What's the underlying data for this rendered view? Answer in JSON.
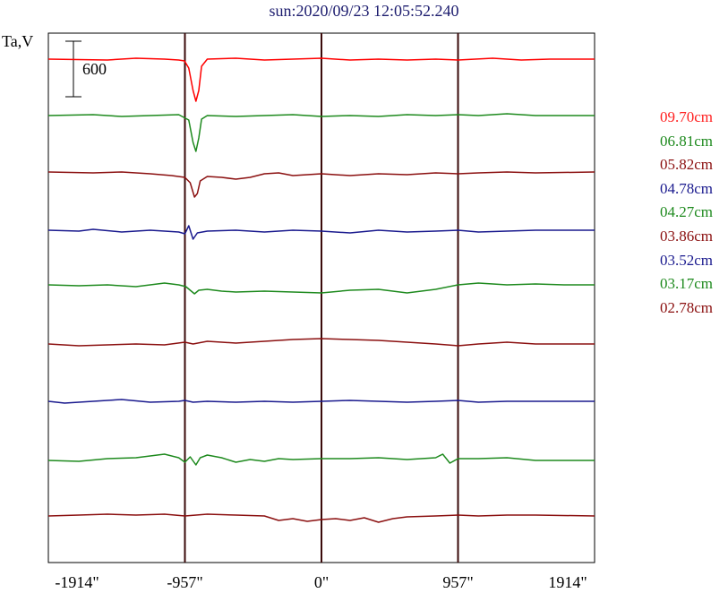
{
  "chart_data": {
    "type": "line",
    "title": "sun:2020/09/23 12:05:52.240",
    "ylabel": "Ta,V",
    "scale_bar_label": "600",
    "x_ticks": [
      "-1914\"",
      "-957\"",
      "0\"",
      "957\"",
      "1914\""
    ],
    "x_tick_values": [
      -1914,
      -957,
      0,
      957,
      1914
    ],
    "xlim": [
      -1914,
      1914
    ],
    "vertical_lines_at": [
      -957,
      0,
      957
    ],
    "series": [
      {
        "name": "09.70cm",
        "color": "#ff0000",
        "offset": 66,
        "points": [
          [
            -1914,
            0
          ],
          [
            -1500,
            1
          ],
          [
            -1300,
            -1
          ],
          [
            -1100,
            0
          ],
          [
            -1000,
            1
          ],
          [
            -960,
            2
          ],
          [
            -930,
            10
          ],
          [
            -900,
            35
          ],
          [
            -880,
            47
          ],
          [
            -860,
            35
          ],
          [
            -840,
            8
          ],
          [
            -800,
            0
          ],
          [
            -600,
            -1
          ],
          [
            -400,
            1
          ],
          [
            -200,
            0
          ],
          [
            0,
            -1
          ],
          [
            200,
            1
          ],
          [
            400,
            0
          ],
          [
            600,
            1
          ],
          [
            800,
            0
          ],
          [
            957,
            1
          ],
          [
            1200,
            -1
          ],
          [
            1400,
            1
          ],
          [
            1600,
            0
          ],
          [
            1914,
            0
          ]
        ]
      },
      {
        "name": "06.81cm",
        "color": "#1e8a1e",
        "offset": 129,
        "points": [
          [
            -1914,
            0
          ],
          [
            -1600,
            -1
          ],
          [
            -1400,
            1
          ],
          [
            -1200,
            0
          ],
          [
            -1000,
            -1
          ],
          [
            -930,
            5
          ],
          [
            -900,
            30
          ],
          [
            -880,
            40
          ],
          [
            -860,
            25
          ],
          [
            -840,
            4
          ],
          [
            -800,
            0
          ],
          [
            -600,
            1
          ],
          [
            -400,
            0
          ],
          [
            -200,
            -1
          ],
          [
            0,
            1
          ],
          [
            200,
            0
          ],
          [
            400,
            1
          ],
          [
            600,
            -1
          ],
          [
            800,
            0
          ],
          [
            957,
            -1
          ],
          [
            1100,
            0
          ],
          [
            1300,
            -2
          ],
          [
            1500,
            0
          ],
          [
            1914,
            0
          ]
        ]
      },
      {
        "name": "05.82cm",
        "color": "#8b1010",
        "offset": 192,
        "points": [
          [
            -1914,
            0
          ],
          [
            -1600,
            1
          ],
          [
            -1400,
            0
          ],
          [
            -1200,
            2
          ],
          [
            -1050,
            4
          ],
          [
            -957,
            6
          ],
          [
            -920,
            12
          ],
          [
            -890,
            28
          ],
          [
            -870,
            24
          ],
          [
            -850,
            10
          ],
          [
            -800,
            5
          ],
          [
            -700,
            6
          ],
          [
            -600,
            8
          ],
          [
            -500,
            6
          ],
          [
            -400,
            2
          ],
          [
            -300,
            1
          ],
          [
            -200,
            4
          ],
          [
            -100,
            3
          ],
          [
            0,
            2
          ],
          [
            200,
            4
          ],
          [
            400,
            2
          ],
          [
            600,
            3
          ],
          [
            800,
            1
          ],
          [
            957,
            2
          ],
          [
            1100,
            1
          ],
          [
            1300,
            0
          ],
          [
            1500,
            1
          ],
          [
            1914,
            0
          ]
        ]
      },
      {
        "name": "04.78cm",
        "color": "#1a1a8e",
        "offset": 257,
        "points": [
          [
            -1914,
            0
          ],
          [
            -1700,
            1
          ],
          [
            -1600,
            -1
          ],
          [
            -1400,
            2
          ],
          [
            -1200,
            0
          ],
          [
            -1000,
            2
          ],
          [
            -957,
            4
          ],
          [
            -930,
            -5
          ],
          [
            -900,
            10
          ],
          [
            -870,
            3
          ],
          [
            -800,
            1
          ],
          [
            -600,
            0
          ],
          [
            -400,
            2
          ],
          [
            -200,
            0
          ],
          [
            0,
            1
          ],
          [
            200,
            3
          ],
          [
            400,
            0
          ],
          [
            600,
            2
          ],
          [
            800,
            1
          ],
          [
            957,
            0
          ],
          [
            1100,
            2
          ],
          [
            1300,
            1
          ],
          [
            1500,
            0
          ],
          [
            1914,
            0
          ]
        ]
      },
      {
        "name": "04.27cm",
        "color": "#1e8a1e",
        "offset": 318,
        "points": [
          [
            -1914,
            0
          ],
          [
            -1700,
            1
          ],
          [
            -1500,
            0
          ],
          [
            -1300,
            2
          ],
          [
            -1100,
            -2
          ],
          [
            -1000,
            0
          ],
          [
            -950,
            2
          ],
          [
            -920,
            6
          ],
          [
            -890,
            10
          ],
          [
            -860,
            6
          ],
          [
            -800,
            5
          ],
          [
            -700,
            7
          ],
          [
            -600,
            8
          ],
          [
            -400,
            7
          ],
          [
            -200,
            8
          ],
          [
            0,
            9
          ],
          [
            200,
            6
          ],
          [
            400,
            5
          ],
          [
            600,
            9
          ],
          [
            800,
            5
          ],
          [
            957,
            0
          ],
          [
            1100,
            -2
          ],
          [
            1300,
            0
          ],
          [
            1500,
            -1
          ],
          [
            1700,
            0
          ],
          [
            1914,
            0
          ]
        ]
      },
      {
        "name": "03.86cm",
        "color": "#8b1010",
        "offset": 384,
        "points": [
          [
            -1914,
            0
          ],
          [
            -1700,
            2
          ],
          [
            -1500,
            1
          ],
          [
            -1300,
            0
          ],
          [
            -1100,
            1
          ],
          [
            -957,
            -2
          ],
          [
            -900,
            0
          ],
          [
            -800,
            -3
          ],
          [
            -700,
            -2
          ],
          [
            -600,
            -1
          ],
          [
            -400,
            -3
          ],
          [
            -200,
            -5
          ],
          [
            0,
            -6
          ],
          [
            200,
            -5
          ],
          [
            400,
            -4
          ],
          [
            600,
            -2
          ],
          [
            800,
            0
          ],
          [
            957,
            2
          ],
          [
            1100,
            0
          ],
          [
            1300,
            -2
          ],
          [
            1500,
            0
          ],
          [
            1914,
            0
          ]
        ]
      },
      {
        "name": "03.52cm",
        "color": "#1a1a8e",
        "offset": 448,
        "points": [
          [
            -1914,
            0
          ],
          [
            -1800,
            2
          ],
          [
            -1600,
            0
          ],
          [
            -1400,
            -2
          ],
          [
            -1200,
            1
          ],
          [
            -1000,
            0
          ],
          [
            -957,
            -1
          ],
          [
            -900,
            1
          ],
          [
            -800,
            0
          ],
          [
            -600,
            1
          ],
          [
            -400,
            0
          ],
          [
            -200,
            1
          ],
          [
            0,
            0
          ],
          [
            200,
            -1
          ],
          [
            400,
            0
          ],
          [
            600,
            1
          ],
          [
            800,
            0
          ],
          [
            957,
            -1
          ],
          [
            1100,
            1
          ],
          [
            1300,
            0
          ],
          [
            1500,
            0
          ],
          [
            1914,
            0
          ]
        ]
      },
      {
        "name": "03.17cm",
        "color": "#1e8a1e",
        "offset": 514,
        "points": [
          [
            -1914,
            0
          ],
          [
            -1700,
            1
          ],
          [
            -1500,
            -2
          ],
          [
            -1300,
            -3
          ],
          [
            -1100,
            -7
          ],
          [
            -1000,
            -3
          ],
          [
            -957,
            2
          ],
          [
            -920,
            -4
          ],
          [
            -880,
            5
          ],
          [
            -850,
            -3
          ],
          [
            -800,
            -6
          ],
          [
            -700,
            -3
          ],
          [
            -600,
            2
          ],
          [
            -500,
            -1
          ],
          [
            -400,
            1
          ],
          [
            -300,
            -2
          ],
          [
            -200,
            -1
          ],
          [
            0,
            -2
          ],
          [
            200,
            -2
          ],
          [
            400,
            -3
          ],
          [
            600,
            -1
          ],
          [
            800,
            -3
          ],
          [
            850,
            -7
          ],
          [
            900,
            3
          ],
          [
            957,
            -2
          ],
          [
            1100,
            -2
          ],
          [
            1300,
            -3
          ],
          [
            1500,
            0
          ],
          [
            1914,
            0
          ]
        ]
      },
      {
        "name": "02.78cm",
        "color": "#8b1010",
        "offset": 576,
        "points": [
          [
            -1914,
            0
          ],
          [
            -1700,
            -1
          ],
          [
            -1500,
            -2
          ],
          [
            -1300,
            -1
          ],
          [
            -1100,
            -2
          ],
          [
            -957,
            0
          ],
          [
            -800,
            -2
          ],
          [
            -600,
            -1
          ],
          [
            -400,
            0
          ],
          [
            -300,
            5
          ],
          [
            -200,
            3
          ],
          [
            -100,
            6
          ],
          [
            0,
            4
          ],
          [
            100,
            3
          ],
          [
            200,
            5
          ],
          [
            300,
            2
          ],
          [
            400,
            7
          ],
          [
            500,
            3
          ],
          [
            600,
            1
          ],
          [
            800,
            0
          ],
          [
            957,
            -1
          ],
          [
            1100,
            0
          ],
          [
            1300,
            -1
          ],
          [
            1500,
            -1
          ],
          [
            1914,
            0
          ]
        ]
      }
    ]
  }
}
